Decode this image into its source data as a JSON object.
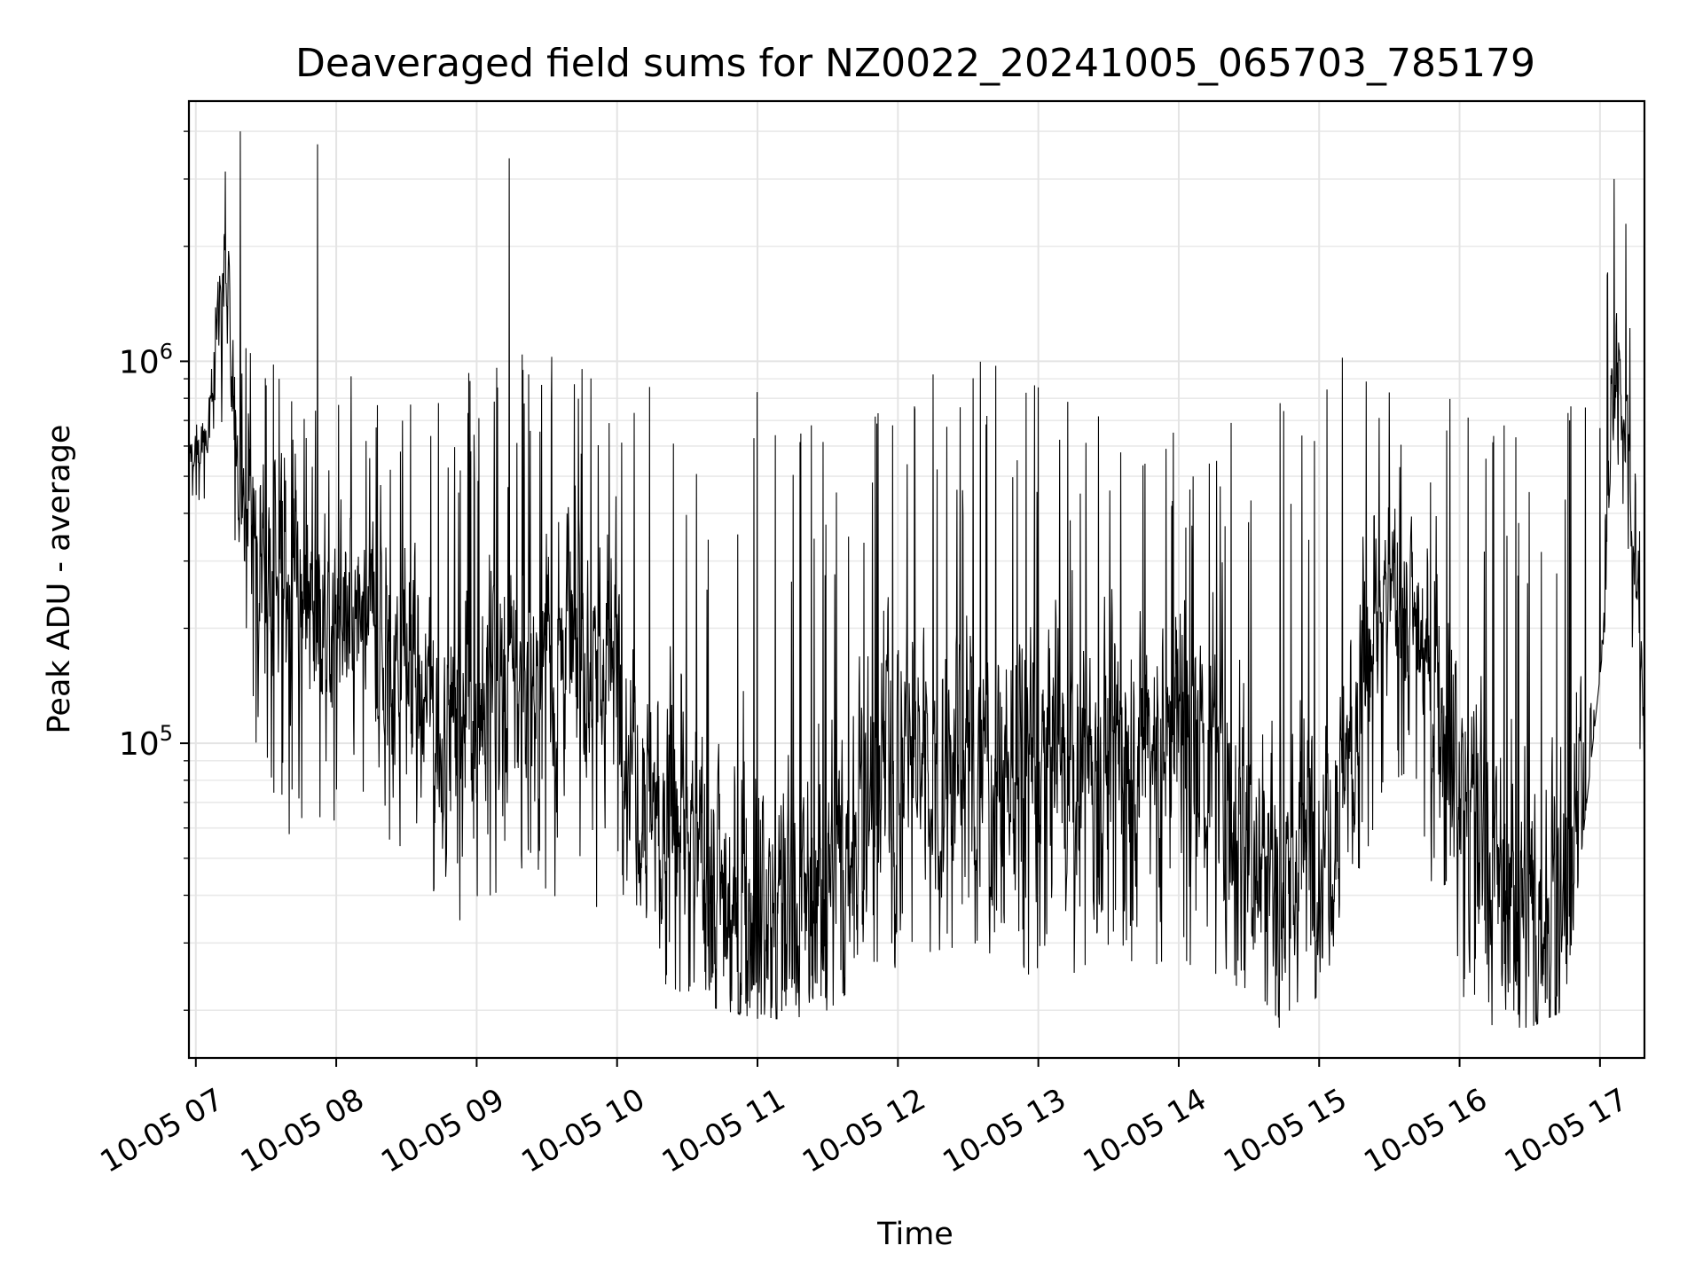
{
  "chart_data": {
    "type": "line",
    "title": "Deaveraged field sums for NZ0022_20241005_065703_785179",
    "xlabel": "Time",
    "ylabel": "Peak ADU - average",
    "yscale": "log",
    "grid": true,
    "legend": "none",
    "x_range": [
      "2024-10-05T06:57:03",
      "2024-10-05T17:19:00"
    ],
    "ylim": [
      15000,
      4800000
    ],
    "x_ticks": [
      {
        "t": "2024-10-05T07:00",
        "label": "10-05 07"
      },
      {
        "t": "2024-10-05T08:00",
        "label": "10-05 08"
      },
      {
        "t": "2024-10-05T09:00",
        "label": "10-05 09"
      },
      {
        "t": "2024-10-05T10:00",
        "label": "10-05 10"
      },
      {
        "t": "2024-10-05T11:00",
        "label": "10-05 11"
      },
      {
        "t": "2024-10-05T12:00",
        "label": "10-05 12"
      },
      {
        "t": "2024-10-05T13:00",
        "label": "10-05 13"
      },
      {
        "t": "2024-10-05T14:00",
        "label": "10-05 14"
      },
      {
        "t": "2024-10-05T15:00",
        "label": "10-05 15"
      },
      {
        "t": "2024-10-05T16:00",
        "label": "10-05 16"
      },
      {
        "t": "2024-10-05T17:00",
        "label": "10-05 17"
      }
    ],
    "y_ticks": [
      {
        "value": 100000,
        "base": "10",
        "exp": "5"
      },
      {
        "value": 1000000,
        "base": "10",
        "exp": "6"
      }
    ],
    "color": "#000000",
    "series": [
      {
        "x": [
          "2024-10-05T06:57",
          "2024-10-05T07:05",
          "2024-10-05T07:10",
          "2024-10-05T07:12",
          "2024-10-05T07:15",
          "2024-10-05T07:20",
          "2024-10-05T07:30",
          "2024-10-05T07:40",
          "2024-10-05T07:50",
          "2024-10-05T08:00",
          "2024-10-05T08:15",
          "2024-10-05T08:30",
          "2024-10-05T08:45",
          "2024-10-05T09:00",
          "2024-10-05T09:15",
          "2024-10-05T09:30",
          "2024-10-05T09:45",
          "2024-10-05T10:00",
          "2024-10-05T10:15",
          "2024-10-05T10:30",
          "2024-10-05T10:45",
          "2024-10-05T11:00",
          "2024-10-05T11:15",
          "2024-10-05T11:30",
          "2024-10-05T11:45",
          "2024-10-05T12:00",
          "2024-10-05T12:15",
          "2024-10-05T12:30",
          "2024-10-05T12:45",
          "2024-10-05T13:00",
          "2024-10-05T13:15",
          "2024-10-05T13:30",
          "2024-10-05T13:45",
          "2024-10-05T14:00",
          "2024-10-05T14:15",
          "2024-10-05T14:30",
          "2024-10-05T14:45",
          "2024-10-05T15:00",
          "2024-10-05T15:15",
          "2024-10-05T15:30",
          "2024-10-05T15:45",
          "2024-10-05T16:00",
          "2024-10-05T16:15",
          "2024-10-05T16:30",
          "2024-10-05T16:45",
          "2024-10-05T17:00",
          "2024-10-05T17:05",
          "2024-10-05T17:10",
          "2024-10-05T17:15",
          "2024-10-05T17:19"
        ],
        "center": [
          550000,
          600000,
          1500000,
          1800000,
          900000,
          450000,
          300000,
          250000,
          230000,
          200000,
          190000,
          160000,
          110000,
          120000,
          140000,
          170000,
          180000,
          150000,
          80000,
          55000,
          42000,
          38000,
          35000,
          42000,
          70000,
          90000,
          95000,
          90000,
          80000,
          85000,
          90000,
          95000,
          100000,
          105000,
          90000,
          70000,
          45000,
          60000,
          120000,
          250000,
          200000,
          80000,
          45000,
          35000,
          40000,
          100000,
          800000,
          900000,
          400000,
          100000
        ],
        "upper_envelope": [
          800000,
          700000,
          3500000,
          4000000,
          1400000,
          1200000,
          1100000,
          1000000,
          900000,
          1000000,
          1000000,
          900000,
          800000,
          1000000,
          1000000,
          1200000,
          1000000,
          800000,
          900000,
          700000,
          800000,
          900000,
          700000,
          800000,
          900000,
          1000000,
          1000000,
          1000000,
          1000000,
          1000000,
          900000,
          800000,
          900000,
          800000,
          700000,
          900000,
          800000,
          1000000,
          1100000,
          1000000,
          700000,
          900000,
          700000,
          900000,
          1000000,
          1300000,
          2700000,
          3000000,
          1000000,
          150000
        ],
        "lower_envelope": [
          400000,
          420000,
          700000,
          500000,
          250000,
          150000,
          70000,
          55000,
          50000,
          55000,
          60000,
          45000,
          30000,
          35000,
          40000,
          40000,
          35000,
          30000,
          25000,
          21000,
          20000,
          19000,
          19000,
          20000,
          24000,
          26000,
          25000,
          25000,
          24000,
          24000,
          25000,
          26000,
          27000,
          25000,
          22000,
          18000,
          18000,
          22000,
          40000,
          80000,
          50000,
          22000,
          18000,
          18000,
          20000,
          150000,
          300000,
          300000,
          130000,
          55000
        ],
        "peaks": [
          {
            "t": "2024-10-05T07:19",
            "value": 4000000
          },
          {
            "t": "2024-10-05T07:52",
            "value": 3700000
          },
          {
            "t": "2024-10-05T09:14",
            "value": 3400000
          },
          {
            "t": "2024-10-05T17:06",
            "value": 3000000
          }
        ]
      }
    ]
  }
}
